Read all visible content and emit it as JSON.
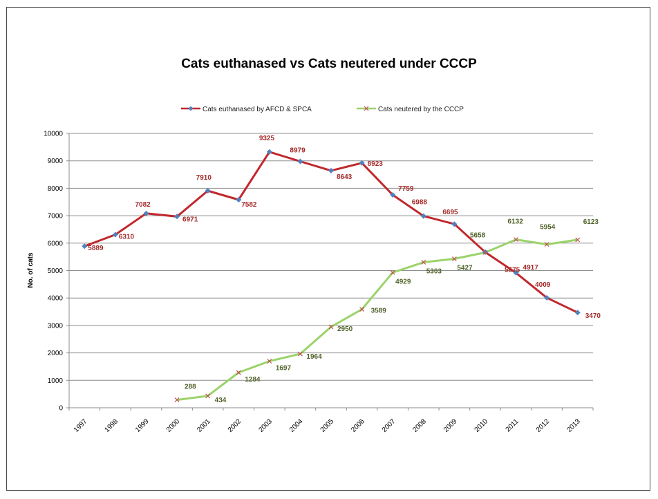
{
  "chart_data": {
    "type": "line",
    "title": "Cats euthanased vs Cats neutered under CCCP",
    "xlabel": "",
    "ylabel": "No. of cats",
    "ylim": [
      0,
      10000
    ],
    "yticks": [
      0,
      1000,
      2000,
      3000,
      4000,
      5000,
      6000,
      7000,
      8000,
      9000,
      10000
    ],
    "grid": true,
    "legend_position": "top",
    "categories": [
      "1997",
      "1998",
      "1999",
      "2000",
      "2001",
      "2002",
      "2003",
      "2004",
      "2005",
      "2006",
      "2007",
      "2008",
      "2009",
      "2010",
      "2011",
      "2012",
      "2013"
    ],
    "series": [
      {
        "name": "Cats euthanased by AFCD & SPCA",
        "color": "#c0282d",
        "marker_color": "#4f81bd",
        "marker": "diamond",
        "values": [
          5889,
          6310,
          7082,
          6971,
          7910,
          7582,
          9325,
          8979,
          8643,
          8923,
          7759,
          6988,
          6695,
          5675,
          4917,
          4009,
          3470
        ]
      },
      {
        "name": "Cats neutered by the CCCP",
        "color": "#9bd36a",
        "marker_color": "#c0504d",
        "marker": "x",
        "label_color": "#4f6228",
        "values": [
          null,
          null,
          null,
          288,
          434,
          1284,
          1697,
          1964,
          2950,
          3589,
          4929,
          5303,
          5427,
          5658,
          6132,
          5954,
          6123
        ]
      }
    ]
  }
}
